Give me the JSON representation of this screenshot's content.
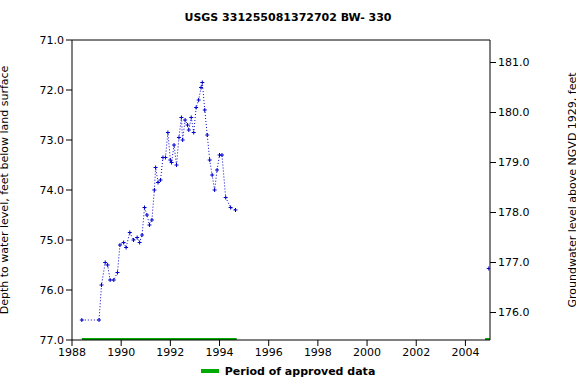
{
  "chart_data": {
    "type": "line",
    "title": "USGS 331255081372702 BW- 330",
    "y_label": "Depth to water level, feet below land surface",
    "y2_label": "Groundwater level above NGVD 1929, feet",
    "xlim": [
      1988,
      2005
    ],
    "xticks": [
      1988,
      1990,
      1992,
      1994,
      1996,
      1998,
      2000,
      2002,
      2004
    ],
    "ylim": [
      71,
      77
    ],
    "yticks": [
      {
        "value": 71,
        "label": "71.0"
      },
      {
        "value": 72,
        "label": "72.0"
      },
      {
        "value": 73,
        "label": "73.0"
      },
      {
        "value": 74,
        "label": "74.0"
      },
      {
        "value": 75,
        "label": "75.0"
      },
      {
        "value": 76,
        "label": "76.0"
      },
      {
        "value": 77,
        "label": "77.0"
      }
    ],
    "y2lim": [
      175.45,
      181.45
    ],
    "y2ticks": [
      {
        "value": 176,
        "label": "176.0"
      },
      {
        "value": 177,
        "label": "177.0"
      },
      {
        "value": 178,
        "label": "178.0"
      },
      {
        "value": 179,
        "label": "179.0"
      },
      {
        "value": 180,
        "label": "180.0"
      },
      {
        "value": 181,
        "label": "181.0"
      }
    ],
    "x": [
      1988.4,
      1989.1,
      1989.2,
      1989.35,
      1989.45,
      1989.55,
      1989.7,
      1989.85,
      1989.95,
      1990.1,
      1990.2,
      1990.35,
      1990.5,
      1990.65,
      1990.75,
      1990.85,
      1990.95,
      1991.05,
      1991.15,
      1991.25,
      1991.35,
      1991.4,
      1991.5,
      1991.6,
      1991.7,
      1991.8,
      1991.9,
      1992.0,
      1992.05,
      1992.15,
      1992.25,
      1992.35,
      1992.45,
      1992.5,
      1992.6,
      1992.7,
      1992.75,
      1992.85,
      1992.95,
      1993.05,
      1993.15,
      1993.25,
      1993.3,
      1993.4,
      1993.5,
      1993.6,
      1993.7,
      1993.8,
      1993.9,
      1994.0,
      1994.1,
      1994.25,
      1994.45,
      1994.65,
      1999.0,
      2004.95
    ],
    "series": [
      {
        "name": "Depth to water level",
        "color": "#0000cc",
        "marker": "plus",
        "line_style": "dotted",
        "values": [
          76.6,
          76.6,
          75.9,
          75.45,
          75.5,
          75.8,
          75.8,
          75.65,
          75.1,
          75.05,
          75.15,
          74.85,
          75.0,
          74.95,
          75.05,
          74.9,
          74.35,
          74.5,
          74.7,
          74.6,
          74.0,
          73.55,
          73.85,
          73.8,
          73.35,
          73.35,
          72.85,
          73.4,
          73.45,
          73.1,
          73.5,
          72.95,
          72.55,
          73.0,
          72.6,
          72.7,
          72.8,
          72.55,
          72.85,
          72.35,
          72.2,
          71.95,
          71.85,
          72.4,
          72.9,
          73.4,
          73.7,
          74.0,
          73.6,
          73.3,
          73.3,
          74.15,
          74.35,
          74.4,
          null,
          75.57
        ]
      }
    ],
    "approved_periods": {
      "name": "Period of approved data",
      "color": "#00aa00",
      "ranges": [
        [
          1988.4,
          1994.7
        ],
        [
          2004.8,
          2005
        ]
      ]
    }
  }
}
